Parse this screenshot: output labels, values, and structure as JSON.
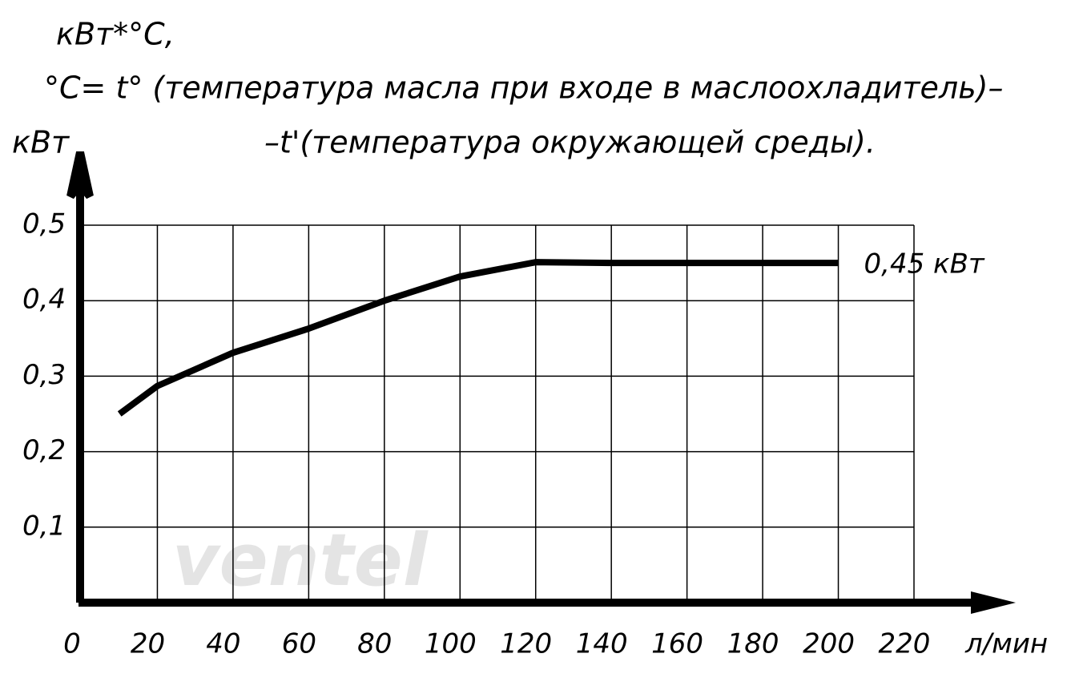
{
  "chart_data": {
    "type": "line",
    "title_lines": [
      "кВт*°С,",
      "°С= t° (температура масла при входе в маслоохладитель)–",
      "–t'(температура окружающей среды)."
    ],
    "y_label": "кВт",
    "x_label": "л/мин",
    "annotation": "0,45 кВт",
    "watermark": "ventel",
    "x": [
      10,
      20,
      40,
      60,
      80,
      100,
      120,
      140,
      160,
      180,
      200
    ],
    "series": [
      {
        "color": "#000000",
        "values": [
          0.25,
          0.287,
          0.331,
          0.363,
          0.4,
          0.432,
          0.451,
          0.45,
          0.45,
          0.45,
          0.45
        ]
      }
    ],
    "xlim": [
      0,
      220
    ],
    "ylim": [
      0,
      0.5
    ],
    "xticks": [
      0,
      20,
      40,
      60,
      80,
      100,
      120,
      140,
      160,
      180,
      200,
      220
    ],
    "yticks": [
      {
        "value": 0.1,
        "label": "0,1"
      },
      {
        "value": 0.2,
        "label": "0,2"
      },
      {
        "value": 0.3,
        "label": "0,3"
      },
      {
        "value": 0.4,
        "label": "0,4"
      },
      {
        "value": 0.5,
        "label": "0,5"
      }
    ],
    "grid": true
  }
}
